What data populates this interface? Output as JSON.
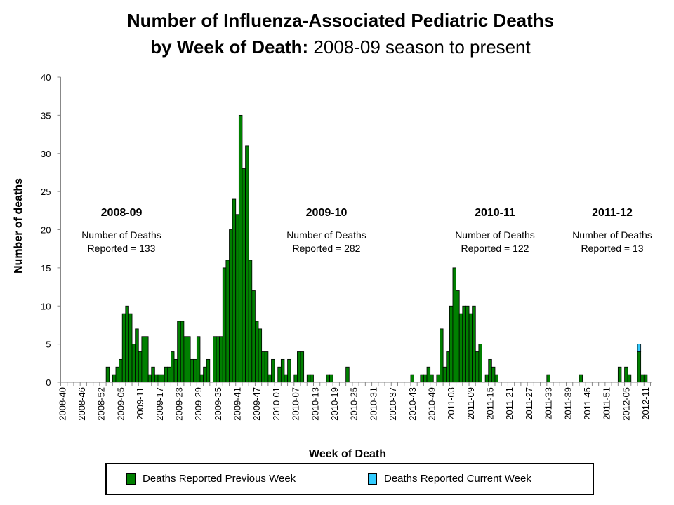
{
  "title": {
    "line1": "Number of Influenza-Associated Pediatric Deaths",
    "line2_bold": "by Week of Death:",
    "line2_normal": " 2008-09 season to present"
  },
  "chart_data": {
    "type": "bar",
    "stacked": true,
    "title": "Number of Influenza-Associated Pediatric Deaths by Week of Death: 2008-09 season to present",
    "xlabel": "Week of Death",
    "ylabel": "Number of deaths",
    "ylim": [
      0,
      40
    ],
    "yticks": [
      0,
      5,
      10,
      15,
      20,
      25,
      30,
      35,
      40
    ],
    "grid": false,
    "legend_position": "bottom",
    "tick_labels": [
      "2008-40",
      "2008-46",
      "2008-52",
      "2009-05",
      "2009-11",
      "2009-17",
      "2009-23",
      "2009-29",
      "2009-35",
      "2009-41",
      "2009-47",
      "2010-01",
      "2010-07",
      "2010-13",
      "2010-19",
      "2010-25",
      "2010-31",
      "2010-37",
      "2010-43",
      "2010-49",
      "2011-03",
      "2011-09",
      "2011-15",
      "2011-21",
      "2011-27",
      "2011-33",
      "2011-39",
      "2011-45",
      "2011-51",
      "2012-05",
      "2012-11"
    ],
    "x": [
      "2008-40",
      "2008-41",
      "2008-42",
      "2008-43",
      "2008-44",
      "2008-45",
      "2008-46",
      "2008-47",
      "2008-48",
      "2008-49",
      "2008-50",
      "2008-51",
      "2008-52",
      "2008-53",
      "2009-01",
      "2009-02",
      "2009-03",
      "2009-04",
      "2009-05",
      "2009-06",
      "2009-07",
      "2009-08",
      "2009-09",
      "2009-10",
      "2009-11",
      "2009-12",
      "2009-13",
      "2009-14",
      "2009-15",
      "2009-16",
      "2009-17",
      "2009-18",
      "2009-19",
      "2009-20",
      "2009-21",
      "2009-22",
      "2009-23",
      "2009-24",
      "2009-25",
      "2009-26",
      "2009-27",
      "2009-28",
      "2009-29",
      "2009-30",
      "2009-31",
      "2009-32",
      "2009-33",
      "2009-34",
      "2009-35",
      "2009-36",
      "2009-37",
      "2009-38",
      "2009-39",
      "2009-40",
      "2009-41",
      "2009-42",
      "2009-43",
      "2009-44",
      "2009-45",
      "2009-46",
      "2009-47",
      "2009-48",
      "2009-49",
      "2009-50",
      "2009-51",
      "2009-52",
      "2010-01",
      "2010-02",
      "2010-03",
      "2010-04",
      "2010-05",
      "2010-06",
      "2010-07",
      "2010-08",
      "2010-09",
      "2010-10",
      "2010-11",
      "2010-12",
      "2010-13",
      "2010-14",
      "2010-15",
      "2010-16",
      "2010-17",
      "2010-18",
      "2010-19",
      "2010-20",
      "2010-21",
      "2010-22",
      "2010-23",
      "2010-24",
      "2010-25",
      "2010-26",
      "2010-27",
      "2010-28",
      "2010-29",
      "2010-30",
      "2010-31",
      "2010-32",
      "2010-33",
      "2010-34",
      "2010-35",
      "2010-36",
      "2010-37",
      "2010-38",
      "2010-39",
      "2010-40",
      "2010-41",
      "2010-42",
      "2010-43",
      "2010-44",
      "2010-45",
      "2010-46",
      "2010-47",
      "2010-48",
      "2010-49",
      "2010-50",
      "2010-51",
      "2010-52",
      "2011-01",
      "2011-02",
      "2011-03",
      "2011-04",
      "2011-05",
      "2011-06",
      "2011-07",
      "2011-08",
      "2011-09",
      "2011-10",
      "2011-11",
      "2011-12",
      "2011-13",
      "2011-14",
      "2011-15",
      "2011-16",
      "2011-17",
      "2011-18",
      "2011-19",
      "2011-20",
      "2011-21",
      "2011-22",
      "2011-23",
      "2011-24",
      "2011-25",
      "2011-26",
      "2011-27",
      "2011-28",
      "2011-29",
      "2011-30",
      "2011-31",
      "2011-32",
      "2011-33",
      "2011-34",
      "2011-35",
      "2011-36",
      "2011-37",
      "2011-38",
      "2011-39",
      "2011-40",
      "2011-41",
      "2011-42",
      "2011-43",
      "2011-44",
      "2011-45",
      "2011-46",
      "2011-47",
      "2011-48",
      "2011-49",
      "2011-50",
      "2011-51",
      "2011-52",
      "2012-01",
      "2012-02",
      "2012-03",
      "2012-04",
      "2012-05",
      "2012-06",
      "2012-07",
      "2012-08",
      "2012-09",
      "2012-10",
      "2012-11",
      "2012-12"
    ],
    "series": [
      {
        "name": "Deaths Reported Previous Week",
        "color": "#008000",
        "values": [
          0,
          0,
          0,
          0,
          0,
          0,
          0,
          0,
          0,
          0,
          0,
          0,
          0,
          0,
          2,
          0,
          1,
          2,
          3,
          9,
          10,
          9,
          5,
          7,
          4,
          6,
          6,
          1,
          2,
          1,
          1,
          1,
          2,
          2,
          4,
          3,
          8,
          8,
          6,
          6,
          3,
          3,
          6,
          1,
          2,
          3,
          0,
          6,
          6,
          6,
          15,
          16,
          20,
          24,
          22,
          35,
          28,
          31,
          16,
          12,
          8,
          7,
          4,
          4,
          1,
          3,
          0,
          2,
          3,
          1,
          3,
          0,
          1,
          4,
          4,
          0,
          1,
          1,
          0,
          0,
          0,
          0,
          1,
          1,
          0,
          0,
          0,
          0,
          2,
          0,
          0,
          0,
          0,
          0,
          0,
          0,
          0,
          0,
          0,
          0,
          0,
          0,
          0,
          0,
          0,
          0,
          0,
          0,
          1,
          0,
          0,
          1,
          1,
          2,
          1,
          0,
          1,
          7,
          2,
          4,
          10,
          15,
          12,
          9,
          10,
          10,
          9,
          10,
          4,
          5,
          0,
          1,
          3,
          2,
          1,
          0,
          0,
          0,
          0,
          0,
          0,
          0,
          0,
          0,
          0,
          0,
          0,
          0,
          0,
          0,
          1,
          0,
          0,
          0,
          0,
          0,
          0,
          0,
          0,
          0,
          1,
          0,
          0,
          0,
          0,
          0,
          0,
          0,
          0,
          0,
          0,
          0,
          2,
          0,
          2,
          1,
          0,
          0,
          4,
          1,
          1,
          0
        ]
      },
      {
        "name": "Deaths Reported Current Week",
        "color": "#33CCFF",
        "values": [
          0,
          0,
          0,
          0,
          0,
          0,
          0,
          0,
          0,
          0,
          0,
          0,
          0,
          0,
          0,
          0,
          0,
          0,
          0,
          0,
          0,
          0,
          0,
          0,
          0,
          0,
          0,
          0,
          0,
          0,
          0,
          0,
          0,
          0,
          0,
          0,
          0,
          0,
          0,
          0,
          0,
          0,
          0,
          0,
          0,
          0,
          0,
          0,
          0,
          0,
          0,
          0,
          0,
          0,
          0,
          0,
          0,
          0,
          0,
          0,
          0,
          0,
          0,
          0,
          0,
          0,
          0,
          0,
          0,
          0,
          0,
          0,
          0,
          0,
          0,
          0,
          0,
          0,
          0,
          0,
          0,
          0,
          0,
          0,
          0,
          0,
          0,
          0,
          0,
          0,
          0,
          0,
          0,
          0,
          0,
          0,
          0,
          0,
          0,
          0,
          0,
          0,
          0,
          0,
          0,
          0,
          0,
          0,
          0,
          0,
          0,
          0,
          0,
          0,
          0,
          0,
          0,
          0,
          0,
          0,
          0,
          0,
          0,
          0,
          0,
          0,
          0,
          0,
          0,
          0,
          0,
          0,
          0,
          0,
          0,
          0,
          0,
          0,
          0,
          0,
          0,
          0,
          0,
          0,
          0,
          0,
          0,
          0,
          0,
          0,
          0,
          0,
          0,
          0,
          0,
          0,
          0,
          0,
          0,
          0,
          0,
          0,
          0,
          0,
          0,
          0,
          0,
          0,
          0,
          0,
          0,
          0,
          0,
          0,
          0,
          0,
          0,
          0,
          1,
          0,
          0,
          0
        ]
      }
    ],
    "annotations": [
      {
        "season": "2008-09",
        "line1": "Number of Deaths",
        "line2": "Reported = 133",
        "near_week": "2008-52"
      },
      {
        "season": "2009-10",
        "line1": "Number of Deaths",
        "line2": "Reported = 282",
        "near_week": "2010-19"
      },
      {
        "season": "2010-11",
        "line1": "Number of Deaths",
        "line2": "Reported = 122",
        "near_week": "2011-09"
      },
      {
        "season": "2011-12",
        "line1": "Number of Deaths",
        "line2": "Reported = 13",
        "near_week": "2012-01"
      }
    ]
  }
}
